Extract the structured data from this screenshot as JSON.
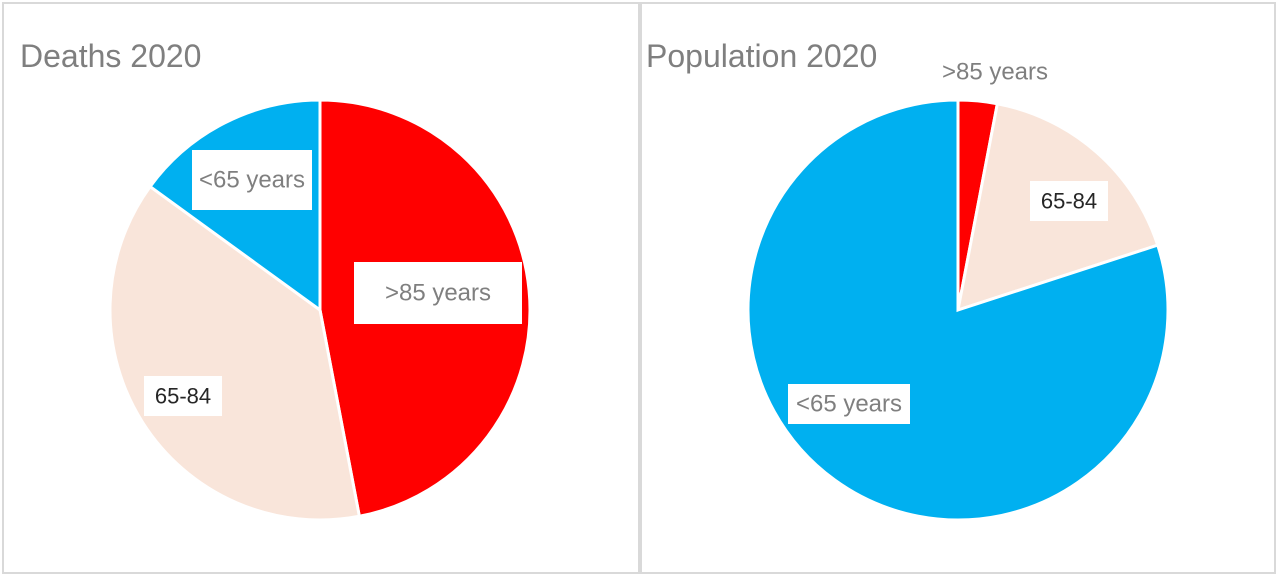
{
  "chart_data": [
    {
      "type": "pie",
      "title": "Deaths 2020",
      "slices": [
        {
          "label": ">85 years",
          "value": 47,
          "color": "#ff0000",
          "label_color": "#7f7f7f"
        },
        {
          "label": "65-84",
          "value": 38,
          "color": "#f9e5da",
          "label_color": "#262626"
        },
        {
          "label": "<65 years",
          "value": 15,
          "color": "#00b0f0",
          "label_color": "#7f7f7f"
        }
      ]
    },
    {
      "type": "pie",
      "title": "Population 2020",
      "slices": [
        {
          "label": ">85 years",
          "value": 3,
          "color": "#ff0000",
          "label_color": "#7f7f7f"
        },
        {
          "label": "65-84",
          "value": 17,
          "color": "#f9e5da",
          "label_color": "#262626"
        },
        {
          "label": "<65 years",
          "value": 80,
          "color": "#00b0f0",
          "label_color": "#7f7f7f"
        }
      ]
    }
  ]
}
